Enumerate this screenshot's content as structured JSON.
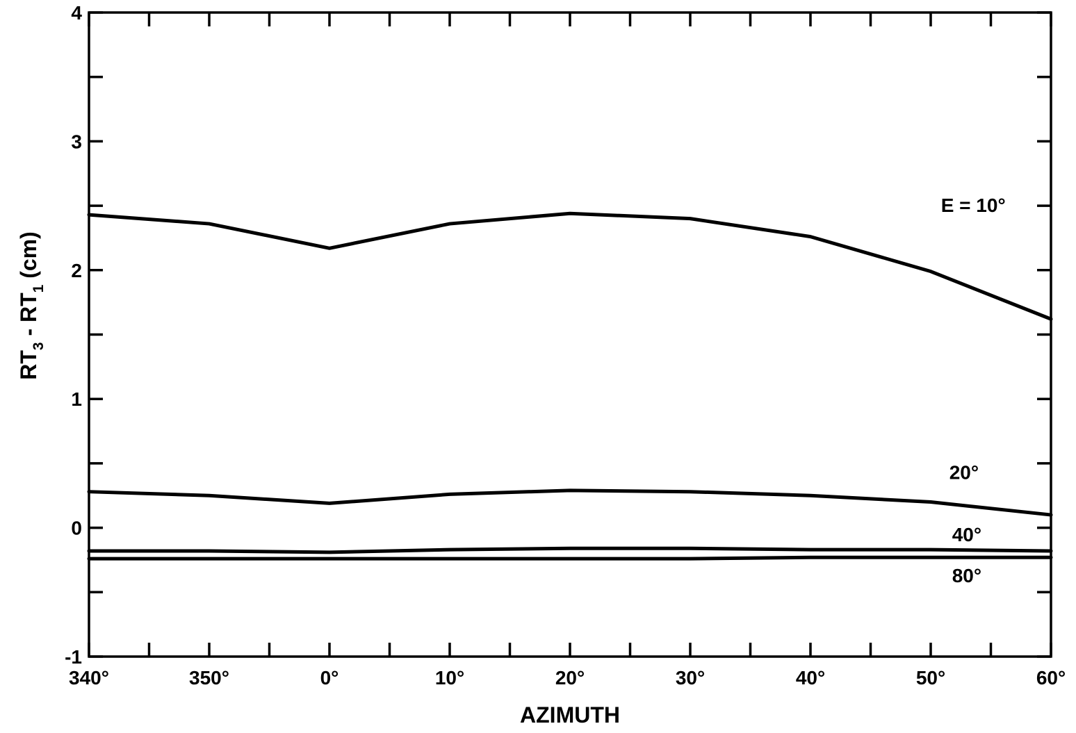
{
  "chart_data": {
    "type": "line",
    "xlabel": "AZIMUTH",
    "ylabel": {
      "parts": [
        "RT",
        "3",
        " - RT",
        "1",
        " (cm)"
      ]
    },
    "x": [
      340,
      350,
      360,
      370,
      380,
      390,
      400,
      410,
      420
    ],
    "x_tick_labels": [
      "340°",
      "350°",
      "0°",
      "10°",
      "20°",
      "30°",
      "40°",
      "50°",
      "60°"
    ],
    "xlim": [
      340,
      420
    ],
    "ylim": [
      -1,
      4
    ],
    "y_ticks": [
      -1,
      0,
      1,
      2,
      3,
      4
    ],
    "y_tick_labels": [
      "-1",
      "0",
      "1",
      "2",
      "3",
      "4"
    ],
    "x_minor_step": 5,
    "y_minor_step": 0.5,
    "grid": false,
    "series": [
      {
        "name": "E = 10°",
        "values": [
          2.43,
          2.36,
          2.17,
          2.36,
          2.44,
          2.4,
          2.26,
          1.99,
          1.62
        ]
      },
      {
        "name": "20°",
        "values": [
          0.28,
          0.25,
          0.19,
          0.26,
          0.29,
          0.28,
          0.25,
          0.2,
          0.1
        ]
      },
      {
        "name": "40°",
        "values": [
          -0.18,
          -0.18,
          -0.19,
          -0.17,
          -0.16,
          -0.16,
          -0.17,
          -0.17,
          -0.18
        ]
      },
      {
        "name": "80°",
        "values": [
          -0.24,
          -0.24,
          -0.24,
          -0.24,
          -0.24,
          -0.24,
          -0.23,
          -0.23,
          -0.23
        ]
      }
    ]
  }
}
